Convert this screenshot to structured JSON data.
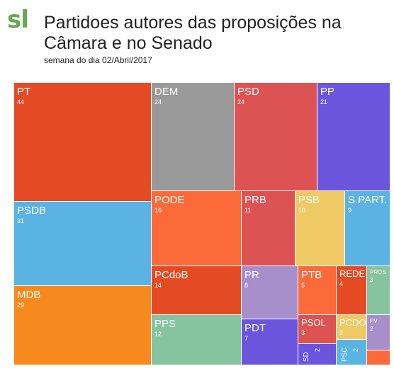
{
  "header": {
    "logo": "sl",
    "title": "Partidoes autores das proposições na Câmara e no Senado",
    "subtitle": "semana do dia 02/Abril/2017"
  },
  "chart_data": {
    "type": "treemap",
    "items": [
      {
        "name": "PT",
        "value": 44,
        "color": "#e44b25"
      },
      {
        "name": "DEM",
        "value": 24,
        "color": "#999999"
      },
      {
        "name": "PSD",
        "value": 24,
        "color": "#dd5252"
      },
      {
        "name": "PP",
        "value": 21,
        "color": "#6a55dc"
      },
      {
        "name": "PSDB",
        "value": 31,
        "color": "#5ab3e3"
      },
      {
        "name": "MDB",
        "value": 29,
        "color": "#f8891f"
      },
      {
        "name": "PODE",
        "value": 16,
        "color": "#fc6a3a"
      },
      {
        "name": "PRB",
        "value": 11,
        "color": "#dd5252"
      },
      {
        "name": "PSB",
        "value": 10,
        "color": "#efca64"
      },
      {
        "name": "S.PART.",
        "value": 9,
        "color": "#5ab3e3"
      },
      {
        "name": "PCdoB",
        "value": 14,
        "color": "#e44b25"
      },
      {
        "name": "PR",
        "value": 8,
        "color": "#a78fcb"
      },
      {
        "name": "PTB",
        "value": 5,
        "color": "#fc6a3a"
      },
      {
        "name": "REDE",
        "value": 4,
        "color": "#e44b25"
      },
      {
        "name": "PROS",
        "value": 3,
        "color": "#86c4a0"
      },
      {
        "name": "PPS",
        "value": 12,
        "color": "#86c4a0"
      },
      {
        "name": "PDT",
        "value": 7,
        "color": "#6a55dc"
      },
      {
        "name": "PSOL",
        "value": 3,
        "color": "#dd5252"
      },
      {
        "name": "PCDOB",
        "value": 2,
        "color": "#efca64"
      },
      {
        "name": "PV",
        "value": 2,
        "color": "#a78fcb"
      },
      {
        "name": "SD",
        "value": 2,
        "color": "#6a55dc"
      },
      {
        "name": "PSC",
        "value": 2,
        "color": "#5ab3e3"
      },
      {
        "name": "",
        "value": 1,
        "color": "#fc6a3a"
      }
    ]
  }
}
